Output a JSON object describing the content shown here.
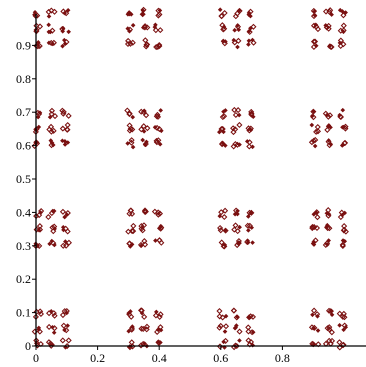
{
  "chart_data": {
    "type": "scatter",
    "title": "",
    "xlabel": "",
    "ylabel": "",
    "xlim": [
      0,
      1.0
    ],
    "ylim": [
      0,
      1.0
    ],
    "grid": false,
    "legend": "none",
    "x_ticks": [
      {
        "value": 0,
        "label": "0"
      },
      {
        "value": 0.2,
        "label": "0.2"
      },
      {
        "value": 0.4,
        "label": "0.4"
      },
      {
        "value": 0.6,
        "label": "0.6"
      },
      {
        "value": 0.8,
        "label": "0.8"
      }
    ],
    "y_ticks": [
      {
        "value": 0,
        "label": "0"
      },
      {
        "value": 0.1,
        "label": "0.1"
      },
      {
        "value": 0.2,
        "label": "0.2"
      },
      {
        "value": 0.3,
        "label": "0.3"
      },
      {
        "value": 0.4,
        "label": "0.4"
      },
      {
        "value": 0.5,
        "label": "0.5"
      },
      {
        "value": 0.6,
        "label": "0.6"
      },
      {
        "value": 0.7,
        "label": "0.7"
      },
      {
        "value": 0.8,
        "label": "0.8"
      },
      {
        "value": 0.9,
        "label": "0.9"
      }
    ],
    "marker_color": "#7a1010",
    "marker_shape": "diamond",
    "structure": {
      "cluster_x_starts": [
        0.0,
        0.3,
        0.6,
        0.9
      ],
      "cluster_y_starts": [
        0.0,
        0.3,
        0.6,
        0.9
      ],
      "cluster_extent": 0.1,
      "subgroups_per_side": 3,
      "subgroup_spacing": 0.045,
      "points_per_subgroup": 4
    }
  }
}
